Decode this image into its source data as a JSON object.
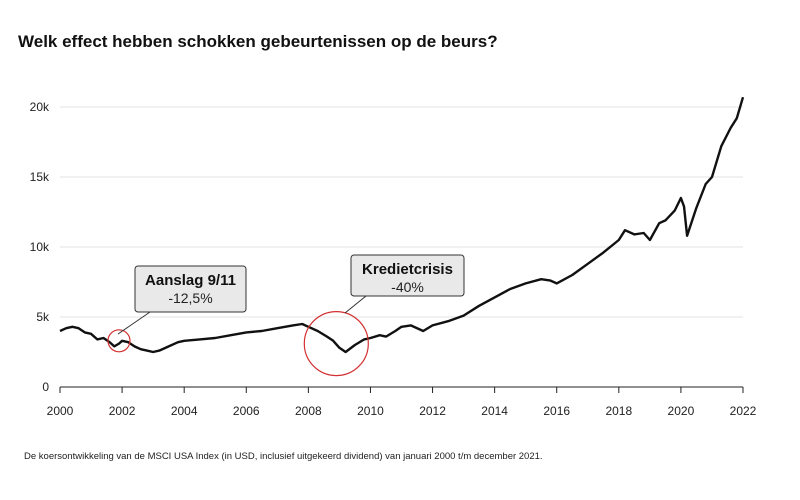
{
  "title": "Welk effect hebben schokken gebeurtenissen op de beurs?",
  "caption": "De koersontwikkeling van de MSCI USA Index (in USD, inclusief uitgekeerd dividend) van januari 2000 t/m december 2021.",
  "colors": {
    "line": "#111111",
    "circle": "#d32f2f",
    "grid": "#e3e3e3",
    "callout_fill": "#e9e9e9",
    "callout_stroke": "#333333"
  },
  "chart_data": {
    "type": "line",
    "title": "Welk effect hebben schokken gebeurtenissen op de beurs?",
    "xlabel": "",
    "ylabel": "",
    "xlim": [
      2000,
      2022
    ],
    "ylim": [
      0,
      21000
    ],
    "x_ticks": [
      2000,
      2002,
      2004,
      2006,
      2008,
      2010,
      2012,
      2014,
      2016,
      2018,
      2020,
      2022
    ],
    "x_tick_labels": [
      "2000",
      "2002",
      "2004",
      "2006",
      "2008",
      "2010",
      "2012",
      "2014",
      "2016",
      "2018",
      "2020",
      "2022"
    ],
    "y_ticks": [
      0,
      5000,
      10000,
      15000,
      20000
    ],
    "y_tick_labels": [
      "0",
      "5k",
      "10k",
      "15k",
      "20k"
    ],
    "grid": true,
    "series": [
      {
        "x": [
          2000.0,
          2000.2,
          2000.4,
          2000.6,
          2000.8,
          2001.0,
          2001.2,
          2001.4,
          2001.6,
          2001.75,
          2001.9,
          2002.0,
          2002.2,
          2002.4,
          2002.6,
          2002.8,
          2003.0,
          2003.2,
          2003.5,
          2003.8,
          2004.0,
          2004.5,
          2005.0,
          2005.5,
          2006.0,
          2006.5,
          2007.0,
          2007.5,
          2007.8,
          2008.0,
          2008.3,
          2008.6,
          2008.8,
          2009.0,
          2009.2,
          2009.5,
          2009.8,
          2010.0,
          2010.3,
          2010.5,
          2010.8,
          2011.0,
          2011.3,
          2011.7,
          2012.0,
          2012.5,
          2013.0,
          2013.5,
          2014.0,
          2014.5,
          2015.0,
          2015.5,
          2015.8,
          2016.0,
          2016.5,
          2017.0,
          2017.5,
          2018.0,
          2018.2,
          2018.5,
          2018.8,
          2019.0,
          2019.3,
          2019.5,
          2019.8,
          2020.0,
          2020.1,
          2020.2,
          2020.5,
          2020.8,
          2021.0,
          2021.3,
          2021.6,
          2021.8,
          2022.0
        ],
        "values": [
          4000,
          4200,
          4300,
          4200,
          3900,
          3800,
          3400,
          3500,
          3200,
          2900,
          3100,
          3300,
          3200,
          2900,
          2700,
          2600,
          2500,
          2600,
          2900,
          3200,
          3300,
          3400,
          3500,
          3700,
          3900,
          4000,
          4200,
          4400,
          4500,
          4300,
          4000,
          3600,
          3300,
          2800,
          2500,
          3000,
          3400,
          3500,
          3700,
          3600,
          4000,
          4300,
          4400,
          4000,
          4400,
          4700,
          5100,
          5800,
          6400,
          7000,
          7400,
          7700,
          7600,
          7400,
          8000,
          8800,
          9600,
          10500,
          11200,
          10900,
          11000,
          10500,
          11700,
          11900,
          12600,
          13500,
          12900,
          10800,
          12800,
          14500,
          15000,
          17200,
          18500,
          19200,
          20700
        ]
      }
    ],
    "annotations": [
      {
        "title": "Aanslag 9/11",
        "value": "-12,5%",
        "x": 2001.9,
        "y": 3300
      },
      {
        "title": "Kredietcrisis",
        "value": "-40%",
        "x": 2008.9,
        "y": 3100
      }
    ]
  }
}
